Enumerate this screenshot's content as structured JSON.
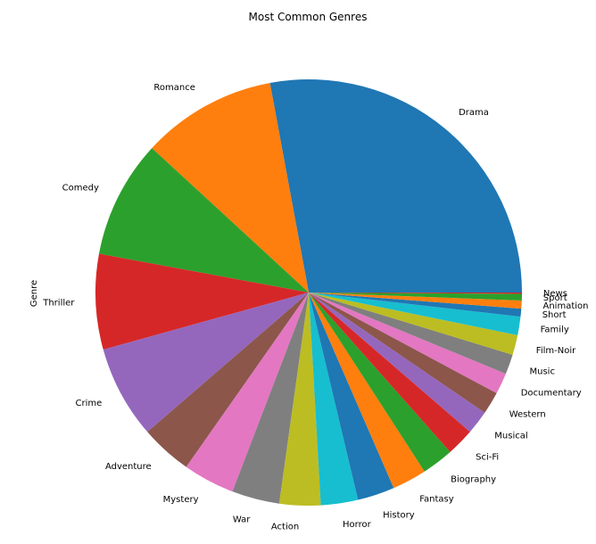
{
  "chart_data": {
    "type": "pie",
    "title": "Most Common Genres",
    "ylabel": "Genre",
    "start_angle_deg": 0,
    "direction": "counterclockwise",
    "slices": [
      {
        "label": "Drama",
        "value": 27.8,
        "color": "#1f77b4"
      },
      {
        "label": "Romance",
        "value": 10.2,
        "color": "#ff7f0e"
      },
      {
        "label": "Comedy",
        "value": 8.9,
        "color": "#2ca02c"
      },
      {
        "label": "Thriller",
        "value": 7.2,
        "color": "#d62728"
      },
      {
        "label": "Crime",
        "value": 7.0,
        "color": "#9467bd"
      },
      {
        "label": "Adventure",
        "value": 3.9,
        "color": "#8c564b"
      },
      {
        "label": "Mystery",
        "value": 3.9,
        "color": "#e377c2"
      },
      {
        "label": "War",
        "value": 3.6,
        "color": "#7f7f7f"
      },
      {
        "label": "Action",
        "value": 3.1,
        "color": "#bcbd22"
      },
      {
        "label": "Horror",
        "value": 2.8,
        "color": "#17becf"
      },
      {
        "label": "History",
        "value": 2.8,
        "color": "#1f77b4"
      },
      {
        "label": "Fantasy",
        "value": 2.6,
        "color": "#ff7f0e"
      },
      {
        "label": "Biography",
        "value": 2.4,
        "color": "#2ca02c"
      },
      {
        "label": "Sci-Fi",
        "value": 2.1,
        "color": "#d62728"
      },
      {
        "label": "Musical",
        "value": 1.8,
        "color": "#9467bd"
      },
      {
        "label": "Western",
        "value": 1.7,
        "color": "#8c564b"
      },
      {
        "label": "Documentary",
        "value": 1.6,
        "color": "#e377c2"
      },
      {
        "label": "Music",
        "value": 1.5,
        "color": "#7f7f7f"
      },
      {
        "label": "Film-Noir",
        "value": 1.5,
        "color": "#bcbd22"
      },
      {
        "label": "Family",
        "value": 1.4,
        "color": "#17becf"
      },
      {
        "label": "Short",
        "value": 0.6,
        "color": "#1f77b4"
      },
      {
        "label": "Animation",
        "value": 0.6,
        "color": "#ff7f0e"
      },
      {
        "label": "Sport",
        "value": 0.5,
        "color": "#2ca02c"
      },
      {
        "label": "News",
        "value": 0.1,
        "color": "#d62728"
      }
    ]
  }
}
